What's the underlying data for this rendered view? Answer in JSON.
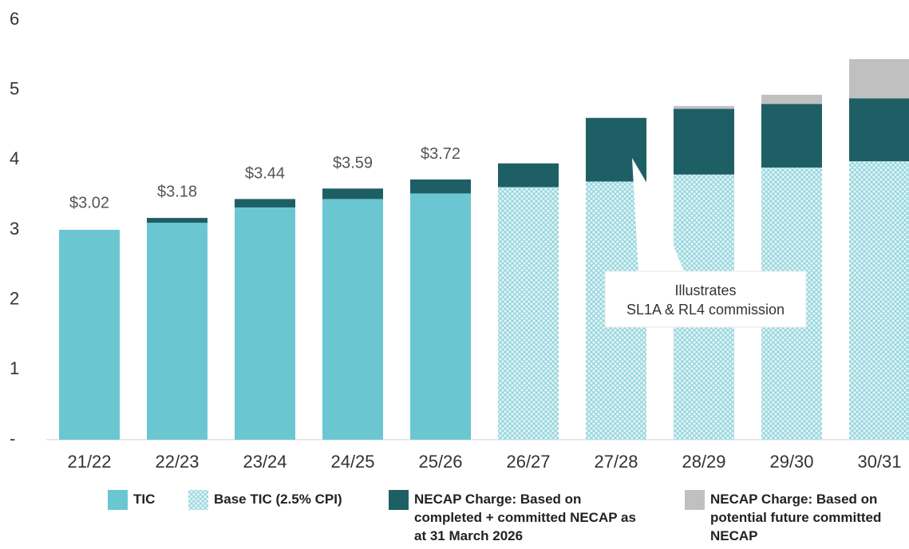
{
  "chart_data": {
    "type": "stacked_bar",
    "categories": [
      "21/22",
      "22/23",
      "23/24",
      "24/25",
      "25/26",
      "26/27",
      "27/28",
      "28/29",
      "29/30",
      "30/31"
    ],
    "series": [
      {
        "name": "TIC",
        "color": "#6ac7d2",
        "values": [
          3.0,
          3.1,
          3.32,
          3.44,
          3.52,
          null,
          null,
          null,
          null,
          null
        ]
      },
      {
        "name": "Base TIC (2.5% CPI)",
        "color": "#8fd3dc",
        "pattern": "crosshatch",
        "values": [
          null,
          null,
          null,
          null,
          null,
          3.61,
          3.69,
          3.79,
          3.89,
          3.98
        ]
      },
      {
        "name": "NECAP Charge: Based on completed + committed NECAP as at 31 March 2026",
        "color": "#1e5f66",
        "values": [
          null,
          0.07,
          0.12,
          0.15,
          0.2,
          0.34,
          0.91,
          0.94,
          0.91,
          0.9
        ]
      },
      {
        "name": "NECAP Charge: Based on potential future committed NECAP",
        "color": "#c0c0c0",
        "values": [
          null,
          null,
          null,
          null,
          null,
          null,
          null,
          0.04,
          0.13,
          0.56
        ]
      }
    ],
    "data_labels": [
      {
        "category": "21/22",
        "value": 3.02,
        "label": "$3.02"
      },
      {
        "category": "22/23",
        "value": 3.18,
        "label": "$3.18"
      },
      {
        "category": "23/24",
        "value": 3.44,
        "label": "$3.44"
      },
      {
        "category": "24/25",
        "value": 3.59,
        "label": "$3.59"
      },
      {
        "category": "25/26",
        "value": 3.72,
        "label": "$3.72"
      }
    ],
    "annotation": {
      "lines": [
        "Illustrates",
        "SL1A & RL4 commission"
      ]
    },
    "ylim": [
      0,
      6
    ],
    "yticks": [
      {
        "value": 0,
        "label": "-"
      },
      1,
      2,
      3,
      4,
      5,
      6
    ],
    "grid": false,
    "legend": "bottom"
  }
}
